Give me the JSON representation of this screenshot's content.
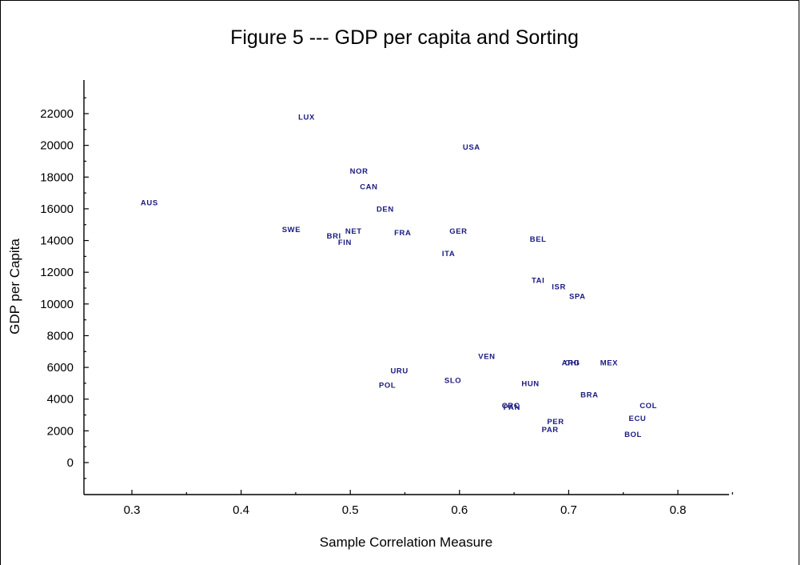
{
  "chart_data": {
    "type": "scatter",
    "title": "Figure 5 --- GDP per capita and Sorting",
    "xlabel": "Sample Correlation Measure",
    "ylabel": "GDP per Capita",
    "xlim": [
      0.26,
      0.85
    ],
    "ylim": [
      -4000,
      24000
    ],
    "x_ticks": [
      0.3,
      0.4,
      0.5,
      0.6,
      0.7,
      0.8
    ],
    "x_tick_labels": [
      "0.3",
      "0.4",
      "0.5",
      "0.6",
      "0.7",
      "0.8"
    ],
    "y_ticks": [
      0,
      2000,
      4000,
      6000,
      8000,
      10000,
      12000,
      14000,
      16000,
      18000,
      20000,
      22000
    ],
    "y_tick_labels": [
      "0",
      "2000",
      "4000",
      "6000",
      "8000",
      "10000",
      "12000",
      "14000",
      "16000",
      "18000",
      "20000",
      "22000"
    ],
    "grid": false,
    "points": [
      {
        "label": "LUX",
        "x": 0.46,
        "y": 21800
      },
      {
        "label": "USA",
        "x": 0.611,
        "y": 19900
      },
      {
        "label": "NOR",
        "x": 0.508,
        "y": 18400
      },
      {
        "label": "CAN",
        "x": 0.517,
        "y": 17400
      },
      {
        "label": "AUS",
        "x": 0.316,
        "y": 16400
      },
      {
        "label": "DEN",
        "x": 0.532,
        "y": 16000
      },
      {
        "label": "SWE",
        "x": 0.446,
        "y": 14700
      },
      {
        "label": "NET",
        "x": 0.503,
        "y": 14600
      },
      {
        "label": "FRA",
        "x": 0.548,
        "y": 14500
      },
      {
        "label": "GER",
        "x": 0.599,
        "y": 14600
      },
      {
        "label": "BRI",
        "x": 0.485,
        "y": 14300
      },
      {
        "label": "FIN",
        "x": 0.495,
        "y": 13900
      },
      {
        "label": "BEL",
        "x": 0.672,
        "y": 14100
      },
      {
        "label": "ITA",
        "x": 0.59,
        "y": 13200
      },
      {
        "label": "TAI",
        "x": 0.672,
        "y": 11500
      },
      {
        "label": "ISR",
        "x": 0.691,
        "y": 11100
      },
      {
        "label": "SPA",
        "x": 0.708,
        "y": 10500
      },
      {
        "label": "VEN",
        "x": 0.625,
        "y": 6700
      },
      {
        "label": "CHI",
        "x": 0.703,
        "y": 6300
      },
      {
        "label": "ARG",
        "x": 0.702,
        "y": 6300
      },
      {
        "label": "MEX",
        "x": 0.737,
        "y": 6300
      },
      {
        "label": "URU",
        "x": 0.545,
        "y": 5800
      },
      {
        "label": "SLO",
        "x": 0.594,
        "y": 5200
      },
      {
        "label": "HUN",
        "x": 0.665,
        "y": 5000
      },
      {
        "label": "POL",
        "x": 0.534,
        "y": 4900
      },
      {
        "label": "BRA",
        "x": 0.719,
        "y": 4300
      },
      {
        "label": "COL",
        "x": 0.773,
        "y": 3600
      },
      {
        "label": "CRC",
        "x": 0.647,
        "y": 3600
      },
      {
        "label": "PAN",
        "x": 0.648,
        "y": 3500
      },
      {
        "label": "ECU",
        "x": 0.763,
        "y": 2800
      },
      {
        "label": "PER",
        "x": 0.688,
        "y": 2600
      },
      {
        "label": "PAR",
        "x": 0.683,
        "y": 2100
      },
      {
        "label": "BOL",
        "x": 0.759,
        "y": 1800
      }
    ]
  }
}
